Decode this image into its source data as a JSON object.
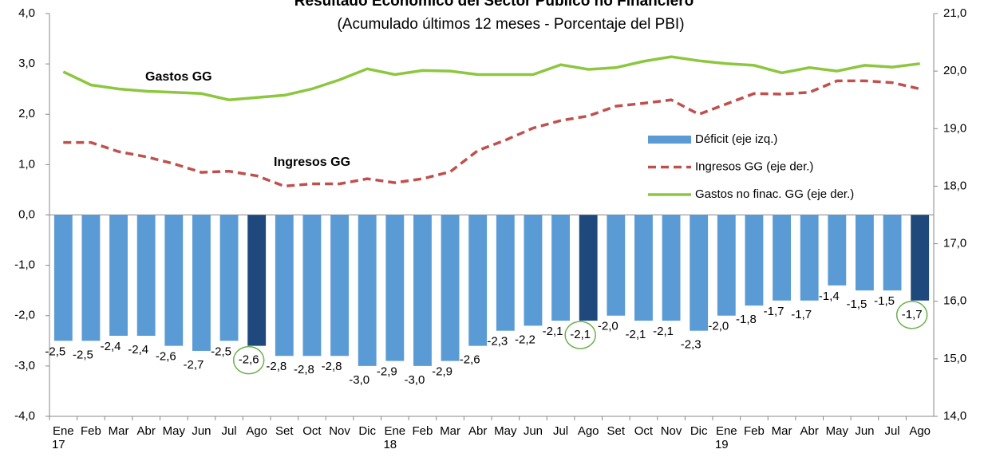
{
  "chart_data": {
    "type": "bar_line",
    "title": "Resultado Económico del Sector Público no Financiero",
    "subtitle": "(Acumulado últimos 12 meses - Porcentaje del PBI)",
    "annotations": [
      "Gastos GG",
      "Ingresos GG"
    ],
    "categories": [
      "Ene",
      "Feb",
      "Mar",
      "Abr",
      "May",
      "Jun",
      "Jul",
      "Ago",
      "Set",
      "Oct",
      "Nov",
      "Dic",
      "Ene",
      "Feb",
      "Mar",
      "Abr",
      "May",
      "Jun",
      "Jul",
      "Ago",
      "Set",
      "Oct",
      "Nov",
      "Dic",
      "Ene",
      "Feb",
      "Mar",
      "Abr",
      "May",
      "Jun",
      "Jul",
      "Ago"
    ],
    "category_years": [
      "17",
      null,
      null,
      null,
      null,
      null,
      null,
      null,
      null,
      null,
      null,
      null,
      "18",
      null,
      null,
      null,
      null,
      null,
      null,
      null,
      null,
      null,
      null,
      null,
      "19",
      null,
      null,
      null,
      null,
      null,
      null,
      null
    ],
    "series": [
      {
        "name": "Déficit (eje izq.)",
        "kind": "bar",
        "color": "#5b9bd5",
        "highlight_color": "#1f497d",
        "highlight": [
          false,
          false,
          false,
          false,
          false,
          false,
          false,
          true,
          false,
          false,
          false,
          false,
          false,
          false,
          false,
          false,
          false,
          false,
          false,
          true,
          false,
          false,
          false,
          false,
          false,
          false,
          false,
          false,
          false,
          false,
          false,
          true
        ],
        "values": [
          -2.5,
          -2.5,
          -2.4,
          -2.4,
          -2.6,
          -2.7,
          -2.5,
          -2.6,
          -2.8,
          -2.8,
          -2.8,
          -3.0,
          -2.9,
          -3.0,
          -2.9,
          -2.6,
          -2.3,
          -2.2,
          -2.1,
          -2.1,
          -2.0,
          -2.1,
          -2.1,
          -2.3,
          -2.0,
          -1.8,
          -1.7,
          -1.7,
          -1.4,
          -1.5,
          -1.5,
          -1.7
        ],
        "value_labels": [
          "-2,5",
          "-2,5",
          "-2,4",
          "-2,4",
          "-2,6",
          "-2,7",
          "-2,5",
          "-2,6",
          "-2,8",
          "-2,8",
          "-2,8",
          "-3,0",
          "-2,9",
          "-3,0",
          "-2,9",
          "-2,6",
          "-2,3",
          "-2,2",
          "-2,1",
          "-2,1",
          "-2,0",
          "-2,1",
          "-2,1",
          "-2,3",
          "-2,0",
          "-1,8",
          "-1,7",
          "-1,7",
          "-1,4",
          "-1,5",
          "-1,5",
          "-1,7"
        ]
      },
      {
        "name": "Ingresos GG (eje der.)",
        "kind": "line",
        "dash": true,
        "axis": "y2",
        "color": "#c0504d",
        "values": [
          18.76,
          18.76,
          18.6,
          18.51,
          18.39,
          18.24,
          18.26,
          18.18,
          18.0,
          18.04,
          18.04,
          18.13,
          18.06,
          18.13,
          18.25,
          18.62,
          18.8,
          19.01,
          19.14,
          19.22,
          19.39,
          19.44,
          19.5,
          19.25,
          19.43,
          19.61,
          19.6,
          19.63,
          19.83,
          19.83,
          19.8,
          19.69
        ]
      },
      {
        "name": "Gastos no finac. GG (eje der.)",
        "kind": "line",
        "dash": false,
        "axis": "y2",
        "color": "#8dc63f",
        "values": [
          19.99,
          19.76,
          19.69,
          19.65,
          19.63,
          19.61,
          19.5,
          19.54,
          19.58,
          19.69,
          19.85,
          20.04,
          19.94,
          20.01,
          20.0,
          19.94,
          19.94,
          19.94,
          20.11,
          20.03,
          20.06,
          20.17,
          20.25,
          20.18,
          20.13,
          20.1,
          19.97,
          20.06,
          20.0,
          20.1,
          20.07,
          20.13
        ]
      }
    ],
    "ylim": [
      -4,
      4
    ],
    "yticks": [
      {
        "value": -4,
        "label": "-4,0"
      },
      {
        "value": -3,
        "label": "-3,0"
      },
      {
        "value": -2,
        "label": "-2,0"
      },
      {
        "value": -1,
        "label": "-1,0"
      },
      {
        "value": 0,
        "label": "0,0"
      },
      {
        "value": 1,
        "label": "1,0"
      },
      {
        "value": 2,
        "label": "2,0"
      },
      {
        "value": 3,
        "label": "3,0"
      },
      {
        "value": 4,
        "label": "4,0"
      }
    ],
    "y2lim": [
      14,
      21
    ],
    "y2ticks": [
      {
        "value": 14,
        "label": "14,0"
      },
      {
        "value": 15,
        "label": "15,0"
      },
      {
        "value": 16,
        "label": "16,0"
      },
      {
        "value": 17,
        "label": "17,0"
      },
      {
        "value": 18,
        "label": "18,0"
      },
      {
        "value": 19,
        "label": "19,0"
      },
      {
        "value": 20,
        "label": "20,0"
      },
      {
        "value": 21,
        "label": "21,0"
      }
    ]
  }
}
